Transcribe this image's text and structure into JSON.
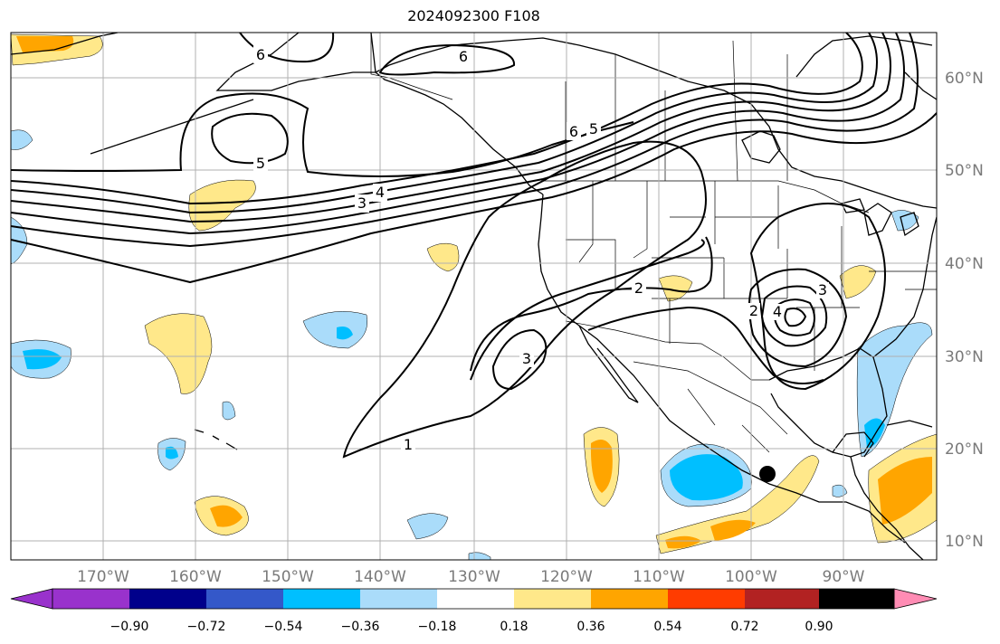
{
  "title": "2024092300 F108",
  "map": {
    "lon_range": [
      -180,
      -80
    ],
    "lat_range": [
      8,
      65
    ],
    "gridlines": true,
    "lon_ticks": [
      "170°W",
      "160°W",
      "150°W",
      "140°W",
      "130°W",
      "120°W",
      "110°W",
      "100°W",
      "90°W"
    ],
    "lat_ticks": [
      "10°N",
      "20°N",
      "30°N",
      "40°N",
      "50°N",
      "60°N"
    ],
    "contour_labels": [
      "6",
      "6",
      "5",
      "4",
      "3",
      "6",
      "5",
      "2",
      "3",
      "1",
      "2",
      "3",
      "4"
    ],
    "marker": {
      "lon": -98,
      "lat": 17,
      "color": "#000000"
    }
  },
  "colorbar": {
    "labels": [
      "−0.90",
      "−0.72",
      "−0.54",
      "−0.36",
      "−0.18",
      "0.18",
      "0.36",
      "0.54",
      "0.72",
      "0.90"
    ],
    "colors": [
      "#9932cc",
      "#00008b",
      "#3458c9",
      "#00bfff",
      "#aadcfa",
      "#ffffff",
      "#ffe88a",
      "#ffa500",
      "#ff3c00",
      "#b22222",
      "#ff8cb4"
    ]
  }
}
